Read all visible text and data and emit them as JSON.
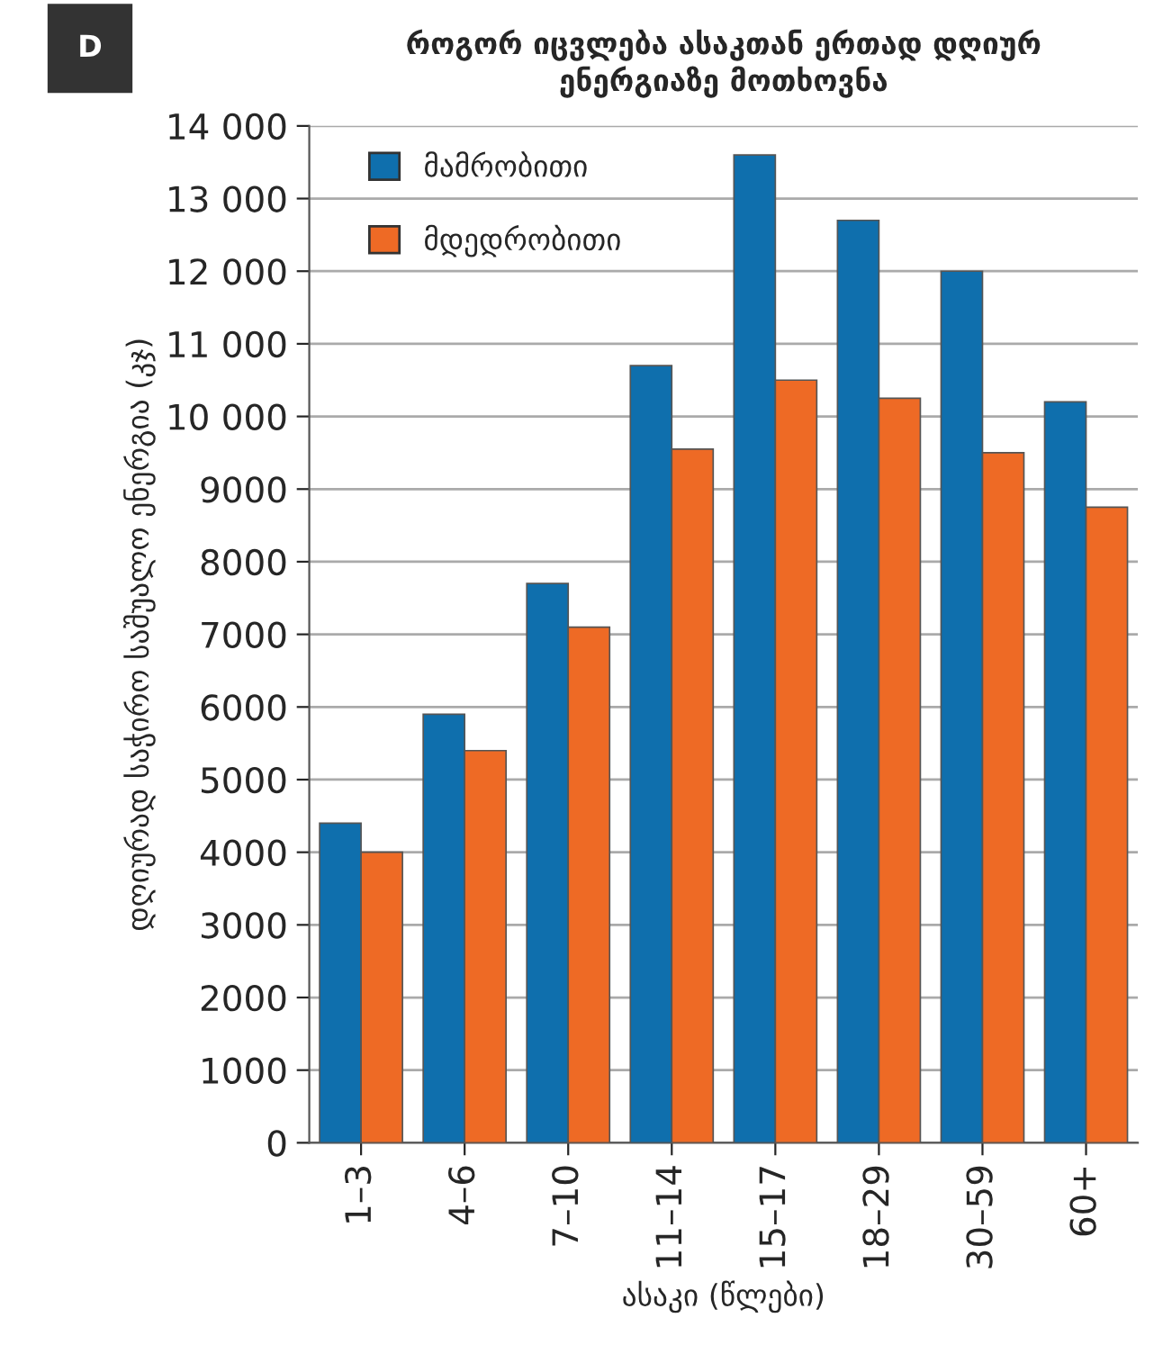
{
  "chart_data": {
    "type": "bar",
    "title": "როგორ იცვლება ასაკთან ერთად დღიურ\nენერგიაზე მოთხოვნა",
    "xlabel": "ასაკი (წლები)",
    "ylabel": "დღიურად საჭირო საშუალო ენერგია (კჯ)",
    "annotations": [
      "D"
    ],
    "categories": [
      "1–3",
      "4–6",
      "7–10",
      "11–14",
      "15–17",
      "18–29",
      "30–59",
      "60+"
    ],
    "series": [
      {
        "name": "მამრობითი",
        "color": "#0f6fad",
        "values": [
          4400,
          5900,
          7700,
          10700,
          13600,
          12700,
          12000,
          10200
        ]
      },
      {
        "name": "მდედრობითი",
        "color": "#ee6a25",
        "values": [
          4000,
          5400,
          7100,
          9550,
          10500,
          10250,
          9500,
          8750
        ]
      }
    ],
    "ylim": [
      0,
      14000
    ],
    "yticks": [
      0,
      1000,
      2000,
      3000,
      4000,
      5000,
      6000,
      7000,
      8000,
      9000,
      {
        "value": 10000,
        "label": "10 000"
      },
      {
        "value": 11000,
        "label": "11 000"
      },
      {
        "value": 12000,
        "label": "12 000"
      },
      {
        "value": 13000,
        "label": "13 000"
      },
      {
        "value": 14000,
        "label": "14 000"
      }
    ],
    "grid": "y",
    "legend": "top left"
  }
}
